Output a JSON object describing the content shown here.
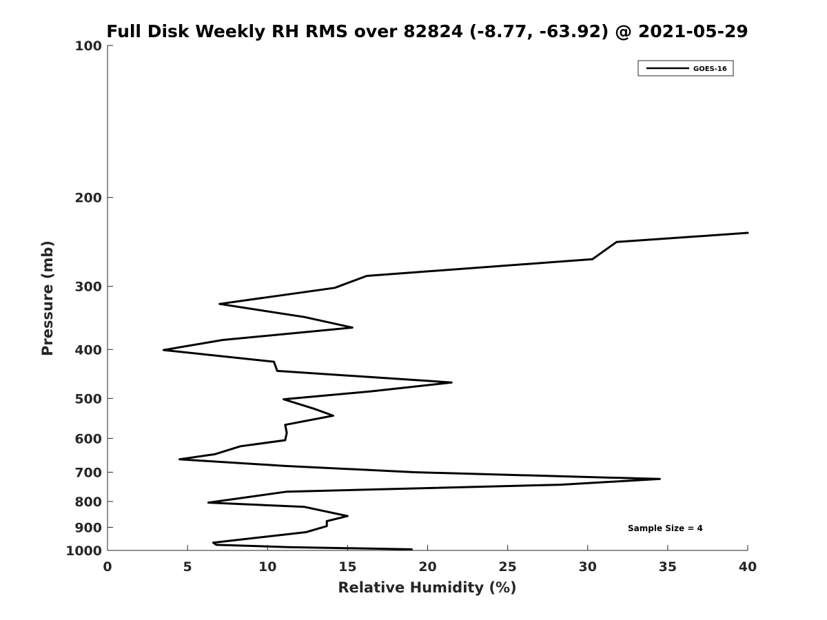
{
  "chart_data": {
    "type": "line",
    "title": "Full Disk Weekly RH RMS over 82824 (-8.77, -63.92) @ 2021-05-29",
    "xlabel": "Relative Humidity (%)",
    "ylabel": "Pressure (mb)",
    "xlim": [
      0,
      40
    ],
    "ylim": [
      100,
      1000
    ],
    "y_scale": "log",
    "y_reversed": true,
    "x_ticks": [
      0,
      5,
      10,
      15,
      20,
      25,
      30,
      35,
      40
    ],
    "y_ticks": [
      100,
      200,
      300,
      400,
      500,
      600,
      700,
      800,
      900,
      1000
    ],
    "grid": false,
    "legend_position": "top-right",
    "series": [
      {
        "name": "GOES-16",
        "color": "#000000",
        "x": [
          40.0,
          31.8,
          30.3,
          16.2,
          14.2,
          7.0,
          12.3,
          15.3,
          7.2,
          3.5,
          10.4,
          10.6,
          21.5,
          16.5,
          11.0,
          12.9,
          14.1,
          11.1,
          11.2,
          11.1,
          8.3,
          6.7,
          4.5,
          11.0,
          19.2,
          34.5,
          28.3,
          11.2,
          6.3,
          12.3,
          15.0,
          13.7,
          13.7,
          12.4,
          6.6,
          6.8,
          11.3,
          19.0
        ],
        "y": [
          235,
          245,
          265,
          286,
          302,
          325,
          345,
          362,
          383,
          401,
          423,
          441,
          465,
          484,
          502,
          524,
          541,
          564,
          585,
          605,
          622,
          645,
          660,
          680,
          700,
          722,
          741,
          765,
          804,
          820,
          855,
          875,
          895,
          920,
          965,
          975,
          985,
          995
        ]
      }
    ],
    "annotation": "Sample Size = 4"
  }
}
